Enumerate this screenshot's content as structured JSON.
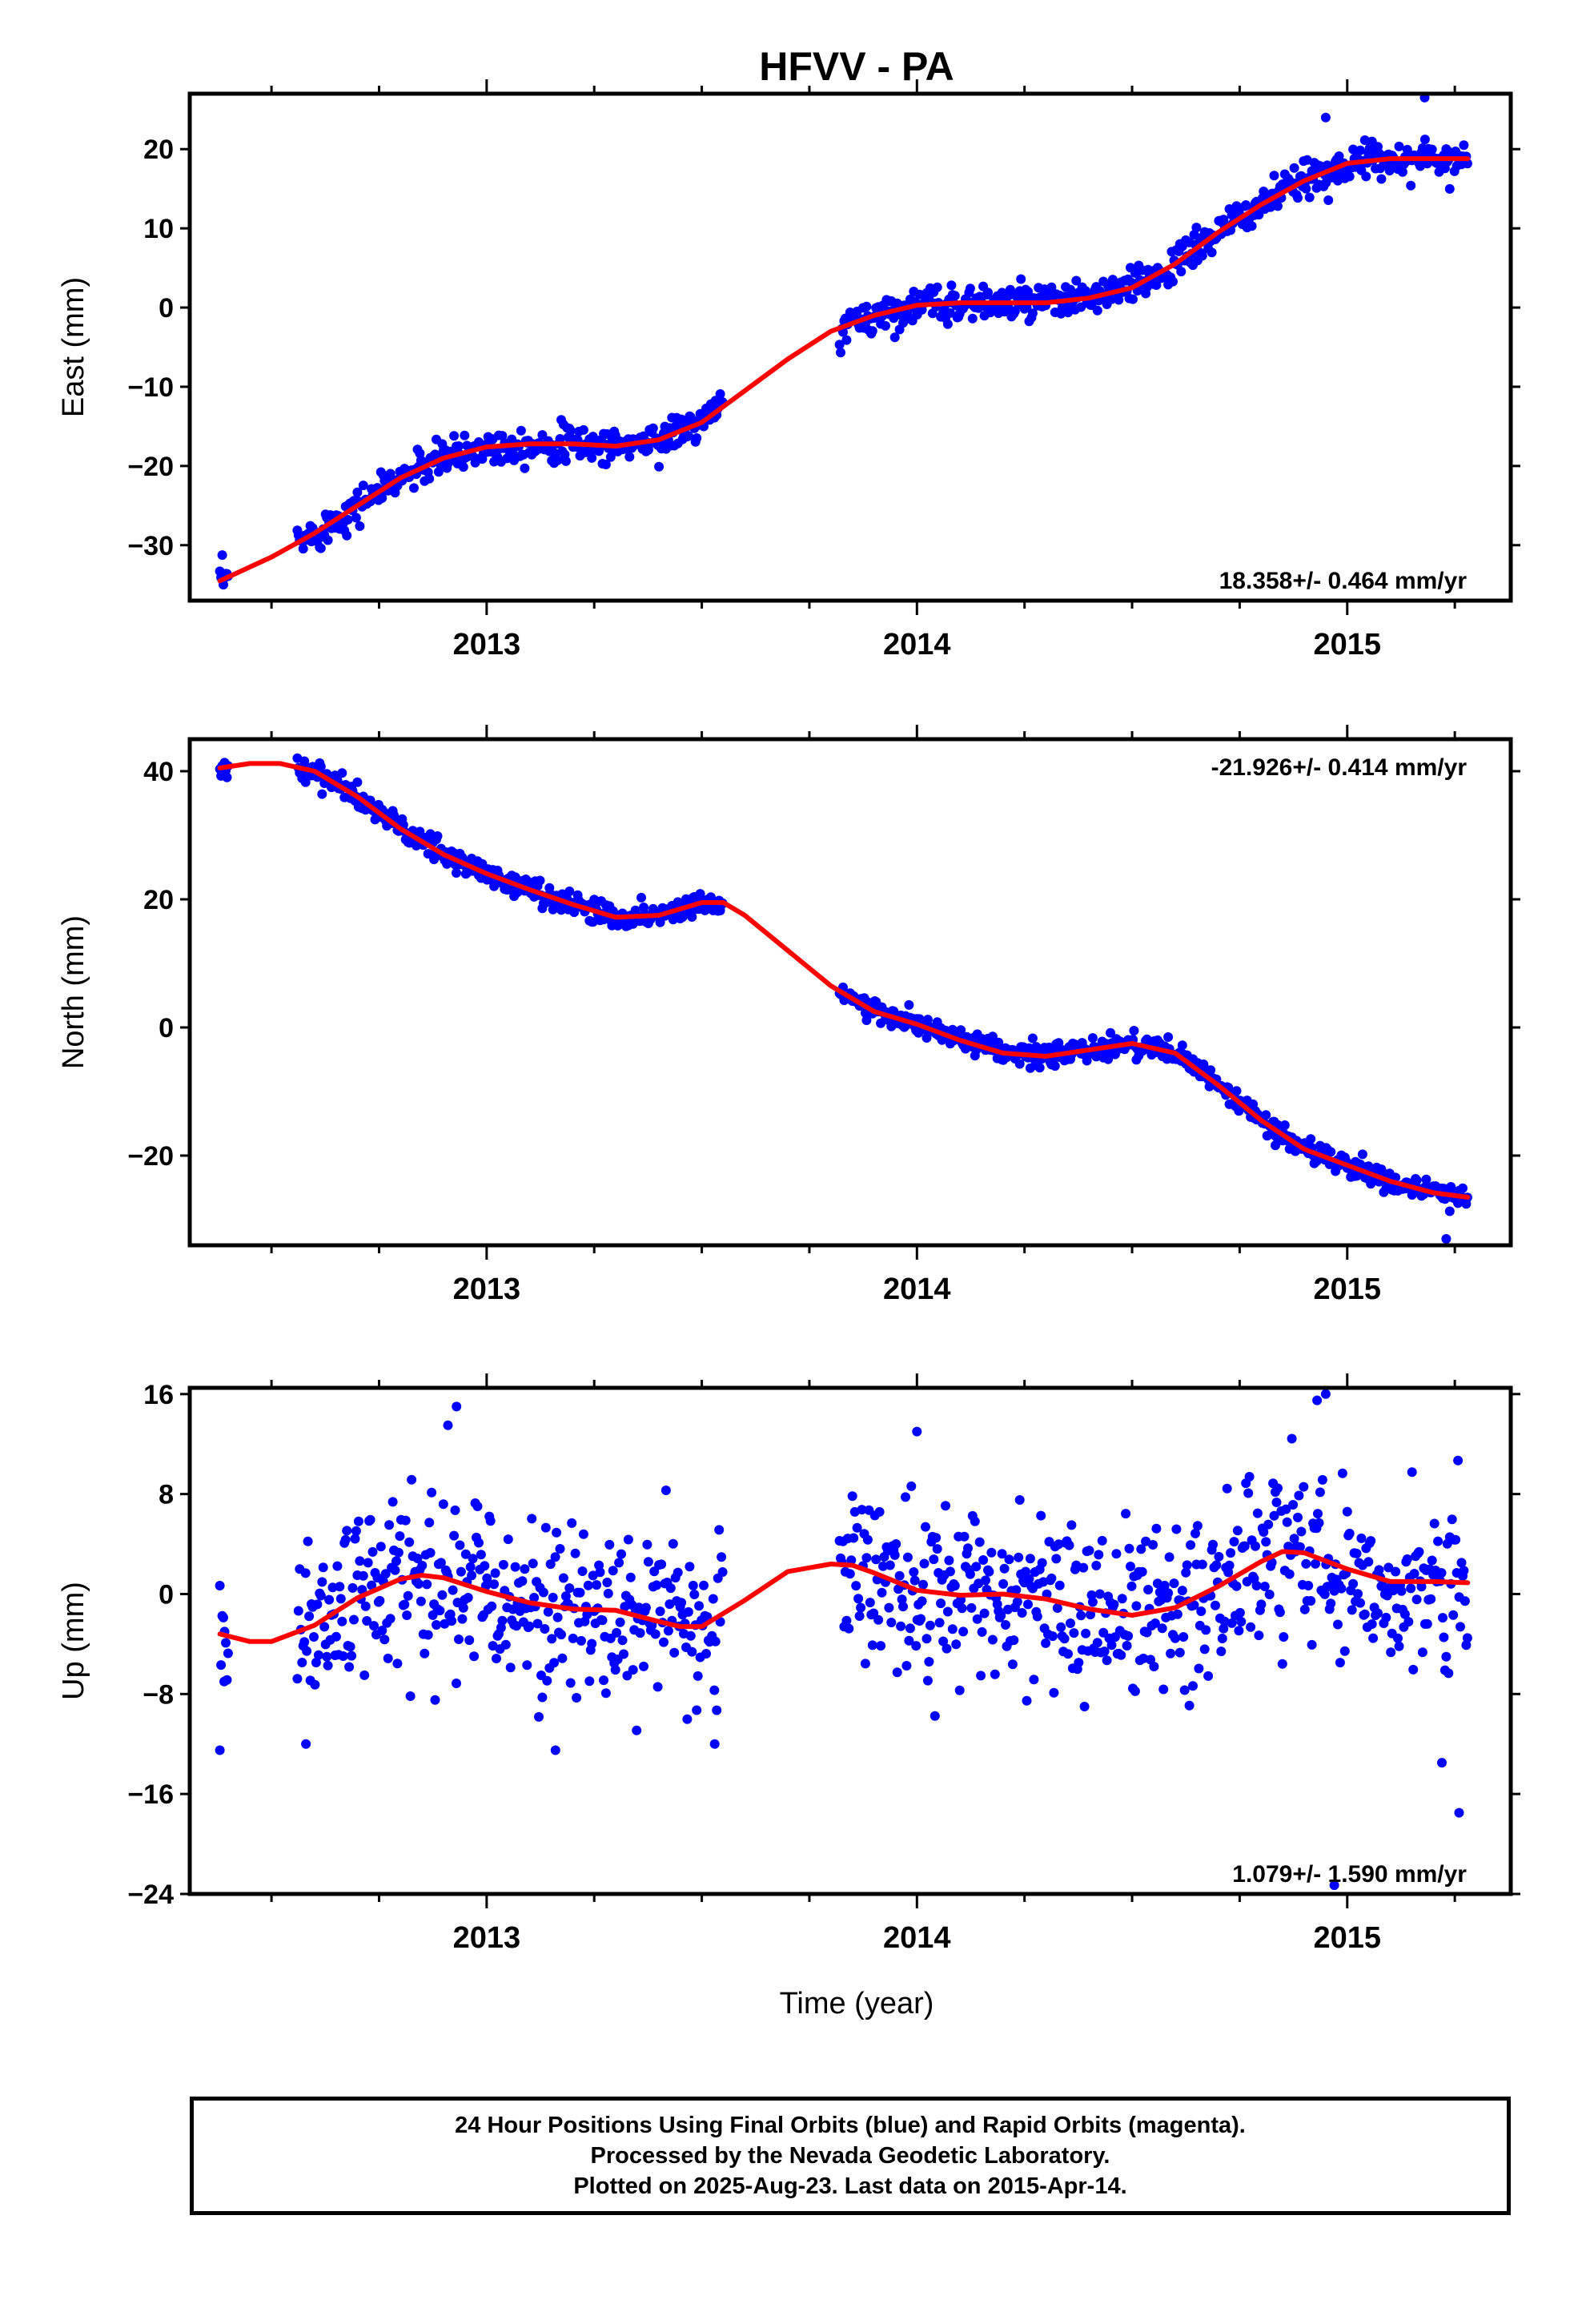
{
  "title": "HFVV - PA",
  "colors": {
    "observation": "#0000ff",
    "fit": "#ff0000",
    "frame": "#000000"
  },
  "xlabel": "Time (year)",
  "caption": {
    "line1": "24 Hour Positions Using Final Orbits (blue) and Rapid Orbits (magenta).",
    "line2": "Processed by the Nevada Geodetic Laboratory.",
    "line3": "Plotted on 2025-Aug-23. Last data on 2015-Apr-14."
  },
  "chart_data": [
    {
      "type": "scatter",
      "component": "east",
      "ylabel": "East (mm)",
      "rate_label": "18.358+/- 0.464 mm/yr",
      "xlim": [
        2012.31,
        2015.38
      ],
      "ylim": [
        -37,
        27
      ],
      "yticks": [
        -30,
        -20,
        -10,
        0,
        10,
        20
      ],
      "xticks": [
        2013,
        2014,
        2015
      ],
      "xticklabels": [
        "2013",
        "2014",
        "2015"
      ],
      "data_segments": [
        [
          2012.38,
          2012.4
        ],
        [
          2012.56,
          2013.55
        ],
        [
          2013.82,
          2015.28
        ]
      ],
      "noise_sd": 1.1,
      "outliers": [
        {
          "x": 2015.18,
          "y": 26.5
        },
        {
          "x": 2014.95,
          "y": 24
        }
      ],
      "fit_curve": {
        "x": [
          2012.38,
          2012.5,
          2012.6,
          2012.7,
          2012.8,
          2012.9,
          2013.0,
          2013.1,
          2013.2,
          2013.3,
          2013.4,
          2013.5,
          2013.6,
          2013.7,
          2013.8,
          2013.9,
          2014.0,
          2014.1,
          2014.2,
          2014.3,
          2014.4,
          2014.5,
          2014.6,
          2014.7,
          2014.8,
          2014.9,
          2015.0,
          2015.1,
          2015.2,
          2015.28
        ],
        "y": [
          -34.5,
          -31.5,
          -28.5,
          -25,
          -21.5,
          -19,
          -17.6,
          -17.2,
          -17.2,
          -17.5,
          -16.7,
          -14.5,
          -10.5,
          -6.5,
          -3,
          -1,
          0.3,
          0.6,
          0.6,
          0.6,
          1.2,
          2.5,
          5.5,
          9.5,
          13,
          16,
          18.2,
          18.8,
          18.8,
          18.8
        ]
      }
    },
    {
      "type": "scatter",
      "component": "north",
      "ylabel": "North (mm)",
      "rate_label": "-21.926+/- 0.414 mm/yr",
      "xlim": [
        2012.31,
        2015.38
      ],
      "ylim": [
        -34,
        45
      ],
      "yticks": [
        -20,
        0,
        20,
        40
      ],
      "xticks": [
        2013,
        2014,
        2015
      ],
      "xticklabels": [
        "2013",
        "2014",
        "2015"
      ],
      "data_segments": [
        [
          2012.38,
          2012.4
        ],
        [
          2012.56,
          2013.55
        ],
        [
          2013.82,
          2015.28
        ]
      ],
      "noise_sd": 0.9,
      "outliers": [
        {
          "x": 2015.23,
          "y": -33
        }
      ],
      "fit_curve": {
        "x": [
          2012.38,
          2012.45,
          2012.52,
          2012.6,
          2012.7,
          2012.8,
          2012.9,
          2013.0,
          2013.1,
          2013.2,
          2013.3,
          2013.4,
          2013.5,
          2013.55,
          2013.6,
          2013.7,
          2013.8,
          2013.9,
          2014.0,
          2014.1,
          2014.2,
          2014.3,
          2014.4,
          2014.5,
          2014.6,
          2014.7,
          2014.8,
          2014.9,
          2015.0,
          2015.1,
          2015.2,
          2015.28
        ],
        "y": [
          40.5,
          41.2,
          41.2,
          40,
          36,
          31,
          27,
          24,
          21.5,
          19.2,
          17.2,
          17.5,
          19.5,
          19.5,
          17.5,
          12,
          6.5,
          2.5,
          0.5,
          -2,
          -4,
          -4.5,
          -3.5,
          -2.5,
          -4,
          -9,
          -14.5,
          -19,
          -21.5,
          -24,
          -25.8,
          -26.5
        ]
      }
    },
    {
      "type": "scatter",
      "component": "up",
      "ylabel": "Up (mm)",
      "rate_label": "1.079+/- 1.590 mm/yr",
      "xlim": [
        2012.31,
        2015.38
      ],
      "ylim": [
        -24,
        16.5
      ],
      "yticks": [
        -24,
        -16,
        -8,
        0,
        8,
        16
      ],
      "xticks": [
        2013,
        2014,
        2015
      ],
      "xticklabels": [
        "2013",
        "2014",
        "2015"
      ],
      "data_segments": [
        [
          2012.38,
          2012.4
        ],
        [
          2012.56,
          2013.55
        ],
        [
          2013.82,
          2015.28
        ]
      ],
      "noise_sd": 3.4,
      "outliers": [
        {
          "x": 2012.38,
          "y": -12.5
        },
        {
          "x": 2012.39,
          "y": -7
        },
        {
          "x": 2012.93,
          "y": 15
        },
        {
          "x": 2012.91,
          "y": 13.5
        },
        {
          "x": 2014.95,
          "y": 16
        },
        {
          "x": 2014.93,
          "y": 15.5
        },
        {
          "x": 2015.26,
          "y": -17.5
        },
        {
          "x": 2015.22,
          "y": -13.5
        },
        {
          "x": 2014.0,
          "y": 13
        },
        {
          "x": 2014.97,
          "y": -23.3
        },
        {
          "x": 2013.16,
          "y": -12.5
        },
        {
          "x": 2012.58,
          "y": -12
        },
        {
          "x": 2013.53,
          "y": -12
        }
      ],
      "fit_curve": {
        "x": [
          2012.38,
          2012.45,
          2012.5,
          2012.6,
          2012.7,
          2012.8,
          2012.85,
          2012.9,
          2013.0,
          2013.1,
          2013.2,
          2013.3,
          2013.4,
          2013.45,
          2013.5,
          2013.6,
          2013.7,
          2013.8,
          2013.85,
          2013.9,
          2014.0,
          2014.1,
          2014.2,
          2014.3,
          2014.4,
          2014.5,
          2014.6,
          2014.7,
          2014.8,
          2014.85,
          2014.9,
          2015.0,
          2015.1,
          2015.2,
          2015.28
        ],
        "y": [
          -3.2,
          -3.8,
          -3.8,
          -2.5,
          -0.3,
          1.2,
          1.5,
          1.3,
          0.2,
          -0.7,
          -1.2,
          -1.3,
          -2.2,
          -2.6,
          -2.6,
          -0.5,
          1.8,
          2.4,
          2.3,
          1.7,
          0.3,
          -0.1,
          0,
          -0.4,
          -1.2,
          -1.7,
          -1.1,
          0.6,
          2.6,
          3.4,
          3.3,
          2.0,
          1.0,
          1.0,
          0.9
        ]
      }
    }
  ]
}
